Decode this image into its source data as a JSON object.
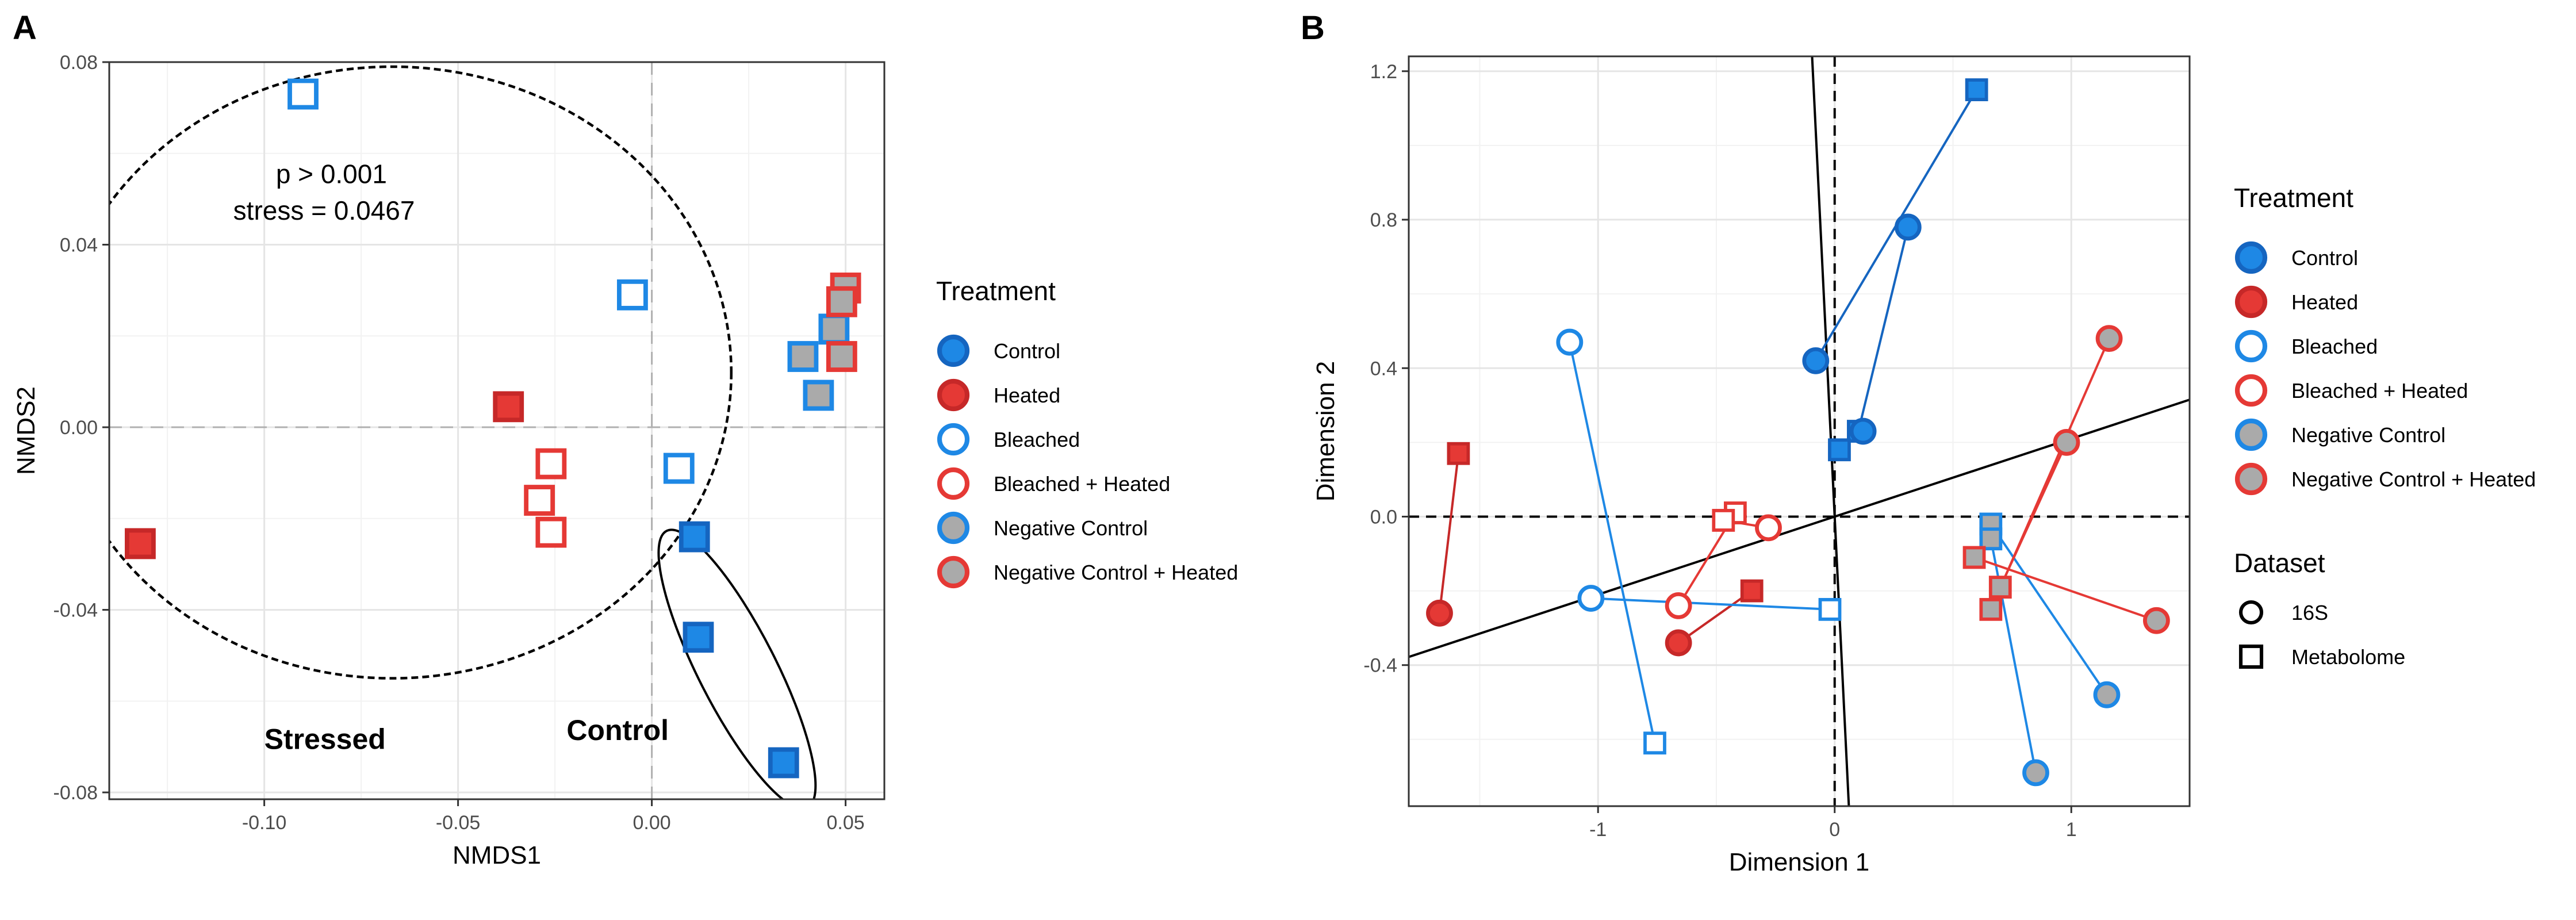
{
  "colors": {
    "control": "#1E88E5",
    "heated": "#E53935",
    "control_dark": "#1565C0",
    "heated_dark": "#C62828",
    "gray_fill": "#AAAAAA",
    "grid_major": "#E5E5E5",
    "grid_minor": "#F2F2F2",
    "refline": "#B0B0B0"
  },
  "chart_data": [
    {
      "panel_label": "A",
      "type": "scatter",
      "xlabel": "NMDS1",
      "ylabel": "NMDS2",
      "xlim": [
        -0.14,
        0.06
      ],
      "ylim": [
        -0.0815,
        0.08
      ],
      "xticks": [
        -0.1,
        -0.05,
        0.0,
        0.05
      ],
      "xtick_labels": [
        "-0.10",
        "-0.05",
        "0.00",
        "0.05"
      ],
      "yticks": [
        -0.08,
        -0.04,
        0.0,
        0.04,
        0.08
      ],
      "ytick_labels": [
        "-0.08",
        "-0.04",
        "0.00",
        "0.04",
        "0.08"
      ],
      "grid": true,
      "annotations": [
        {
          "text": "p > 0.001",
          "x": -0.097,
          "y": 0.0535,
          "bold": false
        },
        {
          "text": "stress = 0.0467",
          "x": -0.108,
          "y": 0.0455,
          "bold": false
        },
        {
          "text": "Stressed",
          "x": -0.1,
          "y": -0.0705,
          "bold": true
        },
        {
          "text": "Control",
          "x": -0.022,
          "y": -0.0685,
          "bold": true
        }
      ],
      "ellipses": [
        {
          "group": "Stressed",
          "style": "dashed",
          "cx": -0.067,
          "cy": 0.012,
          "rx": 0.0875,
          "ry": 0.067,
          "angle": 0
        },
        {
          "group": "Control",
          "style": "solid",
          "cx": 0.022,
          "cy": -0.053,
          "rx": 0.01,
          "ry": 0.034,
          "angle": -27
        }
      ],
      "series": [
        {
          "name": "Control",
          "shape": "square",
          "style": "filled",
          "points": [
            [
              0.011,
              -0.024
            ],
            [
              0.012,
              -0.046
            ],
            [
              0.034,
              -0.0735
            ]
          ]
        },
        {
          "name": "Heated",
          "shape": "square",
          "style": "filled",
          "points": [
            [
              -0.132,
              -0.0255
            ],
            [
              -0.037,
              0.0045
            ]
          ]
        },
        {
          "name": "Bleached",
          "shape": "square",
          "style": "open",
          "points": [
            [
              -0.09,
              0.073
            ],
            [
              -0.005,
              0.029
            ],
            [
              0.007,
              -0.009
            ]
          ]
        },
        {
          "name": "Bleached + Heated",
          "shape": "square",
          "style": "open",
          "points": [
            [
              -0.026,
              -0.008
            ],
            [
              -0.029,
              -0.016
            ],
            [
              -0.026,
              -0.023
            ]
          ]
        },
        {
          "name": "Negative Control",
          "shape": "square",
          "style": "gray",
          "points": [
            [
              0.039,
              0.0155
            ],
            [
              0.043,
              0.007
            ],
            [
              0.047,
              0.0215
            ]
          ]
        },
        {
          "name": "Negative Control + Heated",
          "shape": "square",
          "style": "gray",
          "points": [
            [
              0.05,
              0.0305
            ],
            [
              0.049,
              0.0275
            ],
            [
              0.049,
              0.0155
            ]
          ]
        }
      ],
      "legend": {
        "title": "Treatment",
        "placement": "right",
        "entries": [
          "Control",
          "Heated",
          "Bleached",
          "Bleached + Heated",
          "Negative Control",
          "Negative Control + Heated"
        ]
      }
    },
    {
      "panel_label": "B",
      "type": "scatter",
      "xlabel": "Dimension 1",
      "ylabel": "Dimension 2",
      "xlim": [
        -1.8,
        1.5
      ],
      "ylim": [
        -0.78,
        1.24
      ],
      "xticks": [
        -1,
        0,
        1
      ],
      "xtick_labels": [
        "-1",
        "0",
        "1"
      ],
      "yticks": [
        -0.4,
        0.0,
        0.4,
        0.8,
        1.2
      ],
      "ytick_labels": [
        "-0.4",
        "0.0",
        "0.4",
        "0.8",
        "1.2"
      ],
      "grid": true,
      "axis_lines": [
        {
          "slope": 0.21
        },
        {
          "slope": -13.0
        }
      ],
      "pairs": [
        {
          "treatment": "Control",
          "point_16S": [
            -0.08,
            0.42
          ],
          "point_metabolome": [
            0.6,
            1.15
          ]
        },
        {
          "treatment": "Control",
          "point_16S": [
            0.31,
            0.78
          ],
          "point_metabolome": [
            0.1,
            0.23
          ]
        },
        {
          "treatment": "Control",
          "point_16S": [
            0.12,
            0.23
          ],
          "point_metabolome": [
            0.02,
            0.18
          ]
        },
        {
          "treatment": "Heated",
          "point_16S": [
            -1.67,
            -0.26
          ],
          "point_metabolome": [
            -1.59,
            0.17
          ]
        },
        {
          "treatment": "Heated",
          "point_16S": [
            -0.66,
            -0.34
          ],
          "point_metabolome": [
            -0.35,
            -0.2
          ]
        },
        {
          "treatment": "Bleached",
          "point_16S": [
            -1.12,
            0.47
          ],
          "point_metabolome": [
            -0.76,
            -0.61
          ]
        },
        {
          "treatment": "Bleached",
          "point_16S": [
            -1.03,
            -0.22
          ],
          "point_metabolome": [
            -0.02,
            -0.25
          ]
        },
        {
          "treatment": "Bleached + Heated",
          "point_16S": [
            -0.66,
            -0.24
          ],
          "point_metabolome": [
            -0.42,
            0.01
          ]
        },
        {
          "treatment": "Bleached + Heated",
          "point_16S": [
            -0.28,
            -0.03
          ],
          "point_metabolome": [
            -0.47,
            -0.01
          ]
        },
        {
          "treatment": "Negative Control",
          "point_16S": [
            1.15,
            -0.48
          ],
          "point_metabolome": [
            0.66,
            -0.02
          ]
        },
        {
          "treatment": "Negative Control",
          "point_16S": [
            0.85,
            -0.69
          ],
          "point_metabolome": [
            0.66,
            -0.06
          ]
        },
        {
          "treatment": "Negative Control + Heated",
          "point_16S": [
            1.16,
            0.48
          ],
          "point_metabolome": [
            0.66,
            -0.25
          ]
        },
        {
          "treatment": "Negative Control + Heated",
          "point_16S": [
            0.98,
            0.2
          ],
          "point_metabolome": [
            0.7,
            -0.19
          ]
        },
        {
          "treatment": "Negative Control + Heated",
          "point_16S": [
            1.36,
            -0.28
          ],
          "point_metabolome": [
            0.59,
            -0.11
          ]
        }
      ],
      "legend": {
        "title": "Treatment",
        "placement": "right",
        "entries": [
          "Control",
          "Heated",
          "Bleached",
          "Bleached + Heated",
          "Negative Control",
          "Negative Control + Heated"
        ]
      },
      "legend2": {
        "title": "Dataset",
        "placement": "right",
        "entries": [
          "16S",
          "Metabolome"
        ]
      }
    }
  ]
}
